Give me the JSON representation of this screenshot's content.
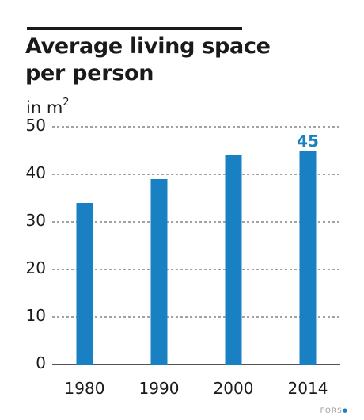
{
  "title": "Average living space per person",
  "unit_prefix": "in m",
  "unit_superscript": "2",
  "credit": "FORS",
  "chart_data": {
    "type": "bar",
    "title": "Average living space per person",
    "ylabel": "in m²",
    "xlabel": "",
    "categories": [
      "1980",
      "1990",
      "2000",
      "2014"
    ],
    "values": [
      34,
      39,
      44,
      45
    ],
    "data_labels": [
      {
        "category": "2014",
        "text": "45"
      }
    ],
    "ylim": [
      0,
      50
    ],
    "yticks": [
      0,
      10,
      20,
      30,
      40,
      50
    ],
    "grid": "dashed horizontal",
    "legend": "none",
    "bar_color": "#1a80c4",
    "label_color": "#1a80c4"
  }
}
